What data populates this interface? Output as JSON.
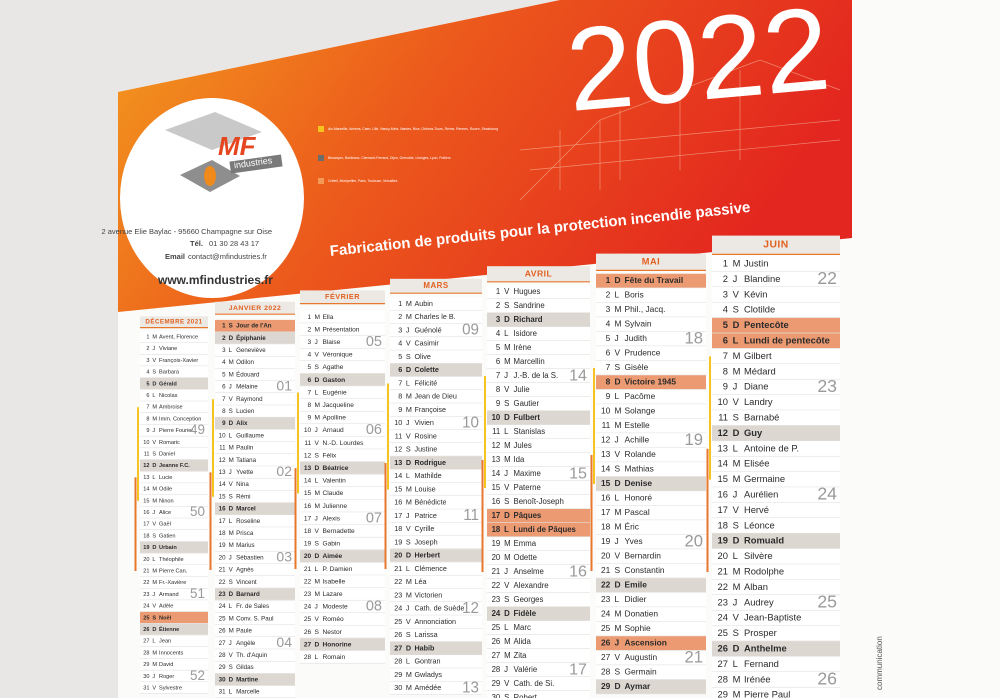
{
  "header": {
    "year": "2022",
    "logo_mf": "MF",
    "logo_sub": "industries",
    "address": "2 avenue Elie Baylac - 95660 Champagne sur Oise",
    "phone_label": "Tél.",
    "phone": "01 30 28 43 17",
    "email_label": "Email",
    "email": "contact@mfindustries.fr",
    "website": "www.mfindustries.fr",
    "tagline": "Fabrication de produits pour la protection incendie passive",
    "zones": [
      "Aix-Marseille, Amiens, Caen, Lille, Nancy-Metz, Nantes, Nice, Orléans-Tours, Reims, Rennes, Rouen, Strasbourg",
      "Besançon, Bordeaux, Clermont-Ferrand, Dijon, Grenoble, Limoges, Lyon, Poitiers",
      "Créteil, Montpellier, Paris, Toulouse, Versailles"
    ]
  },
  "months": [
    {
      "name": "DÉCEMBRE 2021",
      "days": [
        {
          "d": 1,
          "w": "M",
          "n": "Avent, Florence"
        },
        {
          "d": 2,
          "w": "J",
          "n": "Viviane"
        },
        {
          "d": 3,
          "w": "V",
          "n": "François-Xavier"
        },
        {
          "d": 4,
          "w": "S",
          "n": "Barbara"
        },
        {
          "d": 5,
          "w": "D",
          "n": "Gérald"
        },
        {
          "d": 6,
          "w": "L",
          "n": "Nicolas"
        },
        {
          "d": 7,
          "w": "M",
          "n": "Ambroise"
        },
        {
          "d": 8,
          "w": "M",
          "n": "Imm. Conception"
        },
        {
          "d": 9,
          "w": "J",
          "n": "Pierre Fourier",
          "wk": "49"
        },
        {
          "d": 10,
          "w": "V",
          "n": "Romaric"
        },
        {
          "d": 11,
          "w": "S",
          "n": "Daniel"
        },
        {
          "d": 12,
          "w": "D",
          "n": "Jeanne F.C."
        },
        {
          "d": 13,
          "w": "L",
          "n": "Lucie"
        },
        {
          "d": 14,
          "w": "M",
          "n": "Odile"
        },
        {
          "d": 15,
          "w": "M",
          "n": "Ninon"
        },
        {
          "d": 16,
          "w": "J",
          "n": "Alice",
          "wk": "50"
        },
        {
          "d": 17,
          "w": "V",
          "n": "Gaël"
        },
        {
          "d": 18,
          "w": "S",
          "n": "Gatien"
        },
        {
          "d": 19,
          "w": "D",
          "n": "Urbain"
        },
        {
          "d": 20,
          "w": "L",
          "n": "Théophile"
        },
        {
          "d": 21,
          "w": "M",
          "n": "Pierre Can."
        },
        {
          "d": 22,
          "w": "M",
          "n": "Fr.-Xavière"
        },
        {
          "d": 23,
          "w": "J",
          "n": "Armand",
          "wk": "51"
        },
        {
          "d": 24,
          "w": "V",
          "n": "Adèle"
        },
        {
          "d": 25,
          "w": "S",
          "n": "Noël",
          "h": true
        },
        {
          "d": 26,
          "w": "D",
          "n": "Étienne"
        },
        {
          "d": 27,
          "w": "L",
          "n": "Jean"
        },
        {
          "d": 28,
          "w": "M",
          "n": "Innocents"
        },
        {
          "d": 29,
          "w": "M",
          "n": "David"
        },
        {
          "d": 30,
          "w": "J",
          "n": "Roger",
          "wk": "52"
        },
        {
          "d": 31,
          "w": "V",
          "n": "Sylvestre"
        }
      ]
    },
    {
      "name": "JANVIER 2022",
      "days": [
        {
          "d": 1,
          "w": "S",
          "n": "Jour de l'An",
          "h": true
        },
        {
          "d": 2,
          "w": "D",
          "n": "Épiphanie"
        },
        {
          "d": 3,
          "w": "L",
          "n": "Geneviève"
        },
        {
          "d": 4,
          "w": "M",
          "n": "Odilon"
        },
        {
          "d": 5,
          "w": "M",
          "n": "Édouard"
        },
        {
          "d": 6,
          "w": "J",
          "n": "Mélaine",
          "wk": "01"
        },
        {
          "d": 7,
          "w": "V",
          "n": "Raymond"
        },
        {
          "d": 8,
          "w": "S",
          "n": "Lucien"
        },
        {
          "d": 9,
          "w": "D",
          "n": "Alix"
        },
        {
          "d": 10,
          "w": "L",
          "n": "Guillaume"
        },
        {
          "d": 11,
          "w": "M",
          "n": "Paulin"
        },
        {
          "d": 12,
          "w": "M",
          "n": "Tatiana"
        },
        {
          "d": 13,
          "w": "J",
          "n": "Yvette",
          "wk": "02"
        },
        {
          "d": 14,
          "w": "V",
          "n": "Nina"
        },
        {
          "d": 15,
          "w": "S",
          "n": "Rémi"
        },
        {
          "d": 16,
          "w": "D",
          "n": "Marcel"
        },
        {
          "d": 17,
          "w": "L",
          "n": "Roseline"
        },
        {
          "d": 18,
          "w": "M",
          "n": "Prisca"
        },
        {
          "d": 19,
          "w": "M",
          "n": "Marius"
        },
        {
          "d": 20,
          "w": "J",
          "n": "Sébastien",
          "wk": "03"
        },
        {
          "d": 21,
          "w": "V",
          "n": "Agnès"
        },
        {
          "d": 22,
          "w": "S",
          "n": "Vincent"
        },
        {
          "d": 23,
          "w": "D",
          "n": "Barnard"
        },
        {
          "d": 24,
          "w": "L",
          "n": "Fr. de Sales"
        },
        {
          "d": 25,
          "w": "M",
          "n": "Conv. S. Paul"
        },
        {
          "d": 26,
          "w": "M",
          "n": "Paule"
        },
        {
          "d": 27,
          "w": "J",
          "n": "Angèle",
          "wk": "04"
        },
        {
          "d": 28,
          "w": "V",
          "n": "Th. d'Aquin"
        },
        {
          "d": 29,
          "w": "S",
          "n": "Gildas"
        },
        {
          "d": 30,
          "w": "D",
          "n": "Martine"
        },
        {
          "d": 31,
          "w": "L",
          "n": "Marcelle"
        }
      ]
    },
    {
      "name": "FÉVRIER",
      "days": [
        {
          "d": 1,
          "w": "M",
          "n": "Ella"
        },
        {
          "d": 2,
          "w": "M",
          "n": "Présentation"
        },
        {
          "d": 3,
          "w": "J",
          "n": "Blaise",
          "wk": "05"
        },
        {
          "d": 4,
          "w": "V",
          "n": "Véronique"
        },
        {
          "d": 5,
          "w": "S",
          "n": "Agathe"
        },
        {
          "d": 6,
          "w": "D",
          "n": "Gaston"
        },
        {
          "d": 7,
          "w": "L",
          "n": "Eugénie"
        },
        {
          "d": 8,
          "w": "M",
          "n": "Jacqueline"
        },
        {
          "d": 9,
          "w": "M",
          "n": "Apolline"
        },
        {
          "d": 10,
          "w": "J",
          "n": "Arnaud",
          "wk": "06"
        },
        {
          "d": 11,
          "w": "V",
          "n": "N.-D. Lourdes"
        },
        {
          "d": 12,
          "w": "S",
          "n": "Félix"
        },
        {
          "d": 13,
          "w": "D",
          "n": "Béatrice"
        },
        {
          "d": 14,
          "w": "L",
          "n": "Valentin"
        },
        {
          "d": 15,
          "w": "M",
          "n": "Claude"
        },
        {
          "d": 16,
          "w": "M",
          "n": "Julienne"
        },
        {
          "d": 17,
          "w": "J",
          "n": "Alexis",
          "wk": "07"
        },
        {
          "d": 18,
          "w": "V",
          "n": "Bernadette"
        },
        {
          "d": 19,
          "w": "S",
          "n": "Gabin"
        },
        {
          "d": 20,
          "w": "D",
          "n": "Aimée"
        },
        {
          "d": 21,
          "w": "L",
          "n": "P. Damien"
        },
        {
          "d": 22,
          "w": "M",
          "n": "Isabelle"
        },
        {
          "d": 23,
          "w": "M",
          "n": "Lazare"
        },
        {
          "d": 24,
          "w": "J",
          "n": "Modeste",
          "wk": "08"
        },
        {
          "d": 25,
          "w": "V",
          "n": "Roméo"
        },
        {
          "d": 26,
          "w": "S",
          "n": "Nestor"
        },
        {
          "d": 27,
          "w": "D",
          "n": "Honorine"
        },
        {
          "d": 28,
          "w": "L",
          "n": "Romain"
        }
      ]
    },
    {
      "name": "MARS",
      "days": [
        {
          "d": 1,
          "w": "M",
          "n": "Aubin"
        },
        {
          "d": 2,
          "w": "M",
          "n": "Charles le B."
        },
        {
          "d": 3,
          "w": "J",
          "n": "Guénolé",
          "wk": "09"
        },
        {
          "d": 4,
          "w": "V",
          "n": "Casimir"
        },
        {
          "d": 5,
          "w": "S",
          "n": "Olive"
        },
        {
          "d": 6,
          "w": "D",
          "n": "Colette"
        },
        {
          "d": 7,
          "w": "L",
          "n": "Félicité"
        },
        {
          "d": 8,
          "w": "M",
          "n": "Jean de Dieu"
        },
        {
          "d": 9,
          "w": "M",
          "n": "Françoise"
        },
        {
          "d": 10,
          "w": "J",
          "n": "Vivien",
          "wk": "10"
        },
        {
          "d": 11,
          "w": "V",
          "n": "Rosine"
        },
        {
          "d": 12,
          "w": "S",
          "n": "Justine"
        },
        {
          "d": 13,
          "w": "D",
          "n": "Rodrigue"
        },
        {
          "d": 14,
          "w": "L",
          "n": "Mathilde"
        },
        {
          "d": 15,
          "w": "M",
          "n": "Louise"
        },
        {
          "d": 16,
          "w": "M",
          "n": "Bénédicte"
        },
        {
          "d": 17,
          "w": "J",
          "n": "Patrice",
          "wk": "11"
        },
        {
          "d": 18,
          "w": "V",
          "n": "Cyrille"
        },
        {
          "d": 19,
          "w": "S",
          "n": "Joseph"
        },
        {
          "d": 20,
          "w": "D",
          "n": "Herbert"
        },
        {
          "d": 21,
          "w": "L",
          "n": "Clémence"
        },
        {
          "d": 22,
          "w": "M",
          "n": "Léa"
        },
        {
          "d": 23,
          "w": "M",
          "n": "Victorien"
        },
        {
          "d": 24,
          "w": "J",
          "n": "Cath. de Suède",
          "wk": "12"
        },
        {
          "d": 25,
          "w": "V",
          "n": "Annonciation"
        },
        {
          "d": 26,
          "w": "S",
          "n": "Larissa"
        },
        {
          "d": 27,
          "w": "D",
          "n": "Habib"
        },
        {
          "d": 28,
          "w": "L",
          "n": "Gontran"
        },
        {
          "d": 29,
          "w": "M",
          "n": "Gwladys"
        },
        {
          "d": 30,
          "w": "M",
          "n": "Amédée",
          "wk": "13"
        }
      ]
    },
    {
      "name": "AVRIL",
      "days": [
        {
          "d": 1,
          "w": "V",
          "n": "Hugues"
        },
        {
          "d": 2,
          "w": "S",
          "n": "Sandrine"
        },
        {
          "d": 3,
          "w": "D",
          "n": "Richard"
        },
        {
          "d": 4,
          "w": "L",
          "n": "Isidore"
        },
        {
          "d": 5,
          "w": "M",
          "n": "Irène"
        },
        {
          "d": 6,
          "w": "M",
          "n": "Marcellin"
        },
        {
          "d": 7,
          "w": "J",
          "n": "J.-B. de la S.",
          "wk": "14"
        },
        {
          "d": 8,
          "w": "V",
          "n": "Julie"
        },
        {
          "d": 9,
          "w": "S",
          "n": "Gautier"
        },
        {
          "d": 10,
          "w": "D",
          "n": "Fulbert"
        },
        {
          "d": 11,
          "w": "L",
          "n": "Stanislas"
        },
        {
          "d": 12,
          "w": "M",
          "n": "Jules"
        },
        {
          "d": 13,
          "w": "M",
          "n": "Ida"
        },
        {
          "d": 14,
          "w": "J",
          "n": "Maxime",
          "wk": "15"
        },
        {
          "d": 15,
          "w": "V",
          "n": "Paterne"
        },
        {
          "d": 16,
          "w": "S",
          "n": "Benoît-Joseph"
        },
        {
          "d": 17,
          "w": "D",
          "n": "Pâques",
          "h": true
        },
        {
          "d": 18,
          "w": "L",
          "n": "Lundi de Pâques",
          "h": true
        },
        {
          "d": 19,
          "w": "M",
          "n": "Emma"
        },
        {
          "d": 20,
          "w": "M",
          "n": "Odette"
        },
        {
          "d": 21,
          "w": "J",
          "n": "Anselme",
          "wk": "16"
        },
        {
          "d": 22,
          "w": "V",
          "n": "Alexandre"
        },
        {
          "d": 23,
          "w": "S",
          "n": "Georges"
        },
        {
          "d": 24,
          "w": "D",
          "n": "Fidèle"
        },
        {
          "d": 25,
          "w": "L",
          "n": "Marc"
        },
        {
          "d": 26,
          "w": "M",
          "n": "Alida"
        },
        {
          "d": 27,
          "w": "M",
          "n": "Zita"
        },
        {
          "d": 28,
          "w": "J",
          "n": "Valérie",
          "wk": "17"
        },
        {
          "d": 29,
          "w": "V",
          "n": "Cath. de Si."
        },
        {
          "d": 30,
          "w": "S",
          "n": "Robert"
        }
      ]
    },
    {
      "name": "MAI",
      "days": [
        {
          "d": 1,
          "w": "D",
          "n": "Fête du Travail",
          "h": true
        },
        {
          "d": 2,
          "w": "L",
          "n": "Boris"
        },
        {
          "d": 3,
          "w": "M",
          "n": "Phil., Jacq."
        },
        {
          "d": 4,
          "w": "M",
          "n": "Sylvain"
        },
        {
          "d": 5,
          "w": "J",
          "n": "Judith",
          "wk": "18"
        },
        {
          "d": 6,
          "w": "V",
          "n": "Prudence"
        },
        {
          "d": 7,
          "w": "S",
          "n": "Gisèle"
        },
        {
          "d": 8,
          "w": "D",
          "n": "Victoire 1945",
          "h": true
        },
        {
          "d": 9,
          "w": "L",
          "n": "Pacôme"
        },
        {
          "d": 10,
          "w": "M",
          "n": "Solange"
        },
        {
          "d": 11,
          "w": "M",
          "n": "Estelle"
        },
        {
          "d": 12,
          "w": "J",
          "n": "Achille",
          "wk": "19"
        },
        {
          "d": 13,
          "w": "V",
          "n": "Rolande"
        },
        {
          "d": 14,
          "w": "S",
          "n": "Mathias"
        },
        {
          "d": 15,
          "w": "D",
          "n": "Denise"
        },
        {
          "d": 16,
          "w": "L",
          "n": "Honoré"
        },
        {
          "d": 17,
          "w": "M",
          "n": "Pascal"
        },
        {
          "d": 18,
          "w": "M",
          "n": "Éric"
        },
        {
          "d": 19,
          "w": "J",
          "n": "Yves",
          "wk": "20"
        },
        {
          "d": 20,
          "w": "V",
          "n": "Bernardin"
        },
        {
          "d": 21,
          "w": "S",
          "n": "Constantin"
        },
        {
          "d": 22,
          "w": "D",
          "n": "Emile"
        },
        {
          "d": 23,
          "w": "L",
          "n": "Didier"
        },
        {
          "d": 24,
          "w": "M",
          "n": "Donatien"
        },
        {
          "d": 25,
          "w": "M",
          "n": "Sophie"
        },
        {
          "d": 26,
          "w": "J",
          "n": "Ascension",
          "h": true
        },
        {
          "d": 27,
          "w": "V",
          "n": "Augustin",
          "wk": "21"
        },
        {
          "d": 28,
          "w": "S",
          "n": "Germain"
        },
        {
          "d": 29,
          "w": "D",
          "n": "Aymar"
        }
      ]
    },
    {
      "name": "JUIN",
      "days": [
        {
          "d": 1,
          "w": "M",
          "n": "Justin"
        },
        {
          "d": 2,
          "w": "J",
          "n": "Blandine",
          "wk": "22"
        },
        {
          "d": 3,
          "w": "V",
          "n": "Kévin"
        },
        {
          "d": 4,
          "w": "S",
          "n": "Clotilde"
        },
        {
          "d": 5,
          "w": "D",
          "n": "Pentecôte",
          "h": true
        },
        {
          "d": 6,
          "w": "L",
          "n": "Lundi de pentecôte",
          "h": true
        },
        {
          "d": 7,
          "w": "M",
          "n": "Gilbert"
        },
        {
          "d": 8,
          "w": "M",
          "n": "Médard"
        },
        {
          "d": 9,
          "w": "J",
          "n": "Diane",
          "wk": "23"
        },
        {
          "d": 10,
          "w": "V",
          "n": "Landry"
        },
        {
          "d": 11,
          "w": "S",
          "n": "Barnabé"
        },
        {
          "d": 12,
          "w": "D",
          "n": "Guy"
        },
        {
          "d": 13,
          "w": "L",
          "n": "Antoine de P."
        },
        {
          "d": 14,
          "w": "M",
          "n": "Elisée"
        },
        {
          "d": 15,
          "w": "M",
          "n": "Germaine"
        },
        {
          "d": 16,
          "w": "J",
          "n": "Aurélien",
          "wk": "24"
        },
        {
          "d": 17,
          "w": "V",
          "n": "Hervé"
        },
        {
          "d": 18,
          "w": "S",
          "n": "Léonce"
        },
        {
          "d": 19,
          "w": "D",
          "n": "Romuald"
        },
        {
          "d": 20,
          "w": "L",
          "n": "Silvère"
        },
        {
          "d": 21,
          "w": "M",
          "n": "Rodolphe"
        },
        {
          "d": 22,
          "w": "M",
          "n": "Alban"
        },
        {
          "d": 23,
          "w": "J",
          "n": "Audrey",
          "wk": "25"
        },
        {
          "d": 24,
          "w": "V",
          "n": "Jean-Baptiste"
        },
        {
          "d": 25,
          "w": "S",
          "n": "Prosper"
        },
        {
          "d": 26,
          "w": "D",
          "n": "Anthelme"
        },
        {
          "d": 27,
          "w": "L",
          "n": "Fernand"
        },
        {
          "d": 28,
          "w": "M",
          "n": "Irénée",
          "wk": "26"
        },
        {
          "d": 29,
          "w": "M",
          "n": "Pierre Paul"
        }
      ]
    }
  ],
  "side_note": "communication"
}
